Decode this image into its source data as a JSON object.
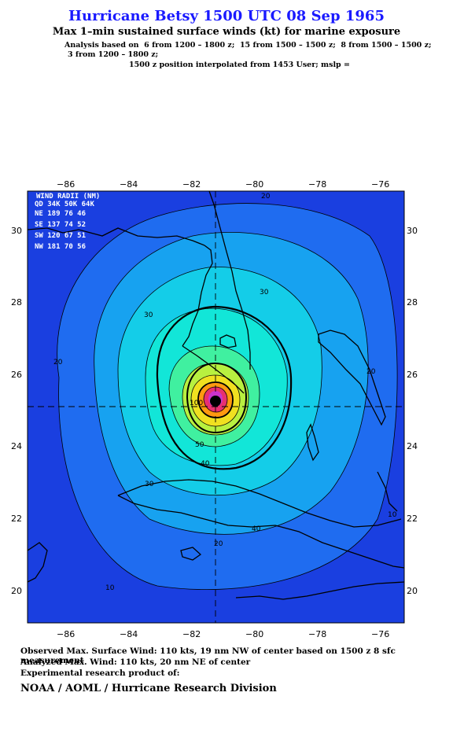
{
  "header": {
    "title": "Hurricane Betsy 1500 UTC 08 Sep 1965",
    "subtitle": "Max 1–min sustained surface winds (kt) for marine exposure",
    "analysis_line1": "Analysis based on  6 from 1200 – 1800 z;  15 from 1500 – 1500 z;  8 from 1500 – 1500 z;",
    "analysis_line2": "3 from 1200 – 1800 z;",
    "analysis_line3": "1500 z position interpolated from 1453 User; mslp ="
  },
  "map": {
    "x_ticks": [
      "−86",
      "−84",
      "−82",
      "−80",
      "−78",
      "−76"
    ],
    "y_ticks": [
      "30",
      "28",
      "26",
      "24",
      "22",
      "20"
    ],
    "contour_labels": [
      "10",
      "20",
      "30",
      "40",
      "50",
      "20",
      "30",
      "10",
      "20",
      "30",
      "40",
      "20",
      "100"
    ],
    "colors": {
      "outer": "#1a3fe0",
      "band2": "#1f6cf0",
      "band3": "#17a2f0",
      "band4": "#14cde8",
      "band5": "#12e6d8",
      "band6": "#40f0a0",
      "band7": "#b8f040",
      "band8": "#f0e020",
      "band9": "#ff9a10",
      "band10": "#e83070",
      "core": "#cc33cc"
    }
  },
  "wind_radii": {
    "header1": "WIND RADII (NM)",
    "header2": "QD 34K 50K 64K",
    "rows": [
      "NE  189  76  46",
      "SE  137  74  52",
      "SW  120  67  51",
      "NW  181  70  56"
    ]
  },
  "footer": {
    "observed": "Observed Max. Surface Wind: 110 kts, 19 nm NW of center based on 1500 z 8 sfc measurement",
    "analyzed": "Analyzed Max. Wind: 110 kts, 20 nm NE of center",
    "experimental": "Experimental research product of:",
    "org": "NOAA / AOML / Hurricane Research Division"
  }
}
